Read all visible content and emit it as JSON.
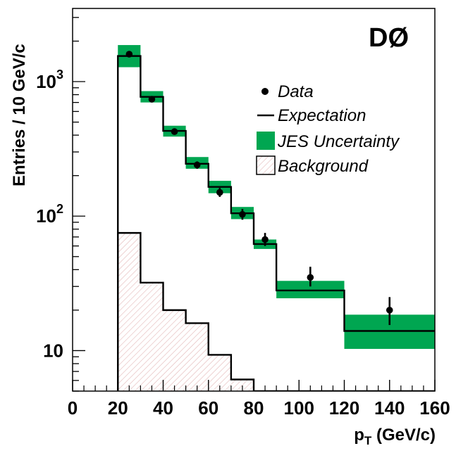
{
  "chart_data": {
    "type": "histogram",
    "experiment_label": "DØ",
    "xlabel": "p",
    "xlabel_subscript": "T",
    "xlabel_unit": " (GeV/c)",
    "ylabel": "Entries / 10 GeV/c",
    "xlim": [
      0,
      160
    ],
    "ylim": [
      5,
      3500
    ],
    "yscale": "log",
    "x_ticks": [
      {
        "value": 0,
        "label": "0"
      },
      {
        "value": 20,
        "label": "20"
      },
      {
        "value": 40,
        "label": "40"
      },
      {
        "value": 60,
        "label": "60"
      },
      {
        "value": 80,
        "label": "80"
      },
      {
        "value": 100,
        "label": "100"
      },
      {
        "value": 120,
        "label": "120"
      },
      {
        "value": 140,
        "label": "140"
      },
      {
        "value": 160,
        "label": "160"
      }
    ],
    "y_ticks": [
      {
        "value": 1000,
        "base": "10",
        "exp": "3"
      },
      {
        "value": 100,
        "base": "10",
        "exp": "2"
      },
      {
        "value": 10,
        "base": "10",
        "exp": ""
      }
    ],
    "bin_edges": [
      20,
      30,
      40,
      50,
      60,
      70,
      80,
      90,
      120,
      160
    ],
    "expectation": [
      1550,
      770,
      430,
      245,
      165,
      105,
      62,
      28,
      14
    ],
    "jes_uncertainty": [
      {
        "low": 1280,
        "high": 1870
      },
      {
        "low": 700,
        "high": 850
      },
      {
        "low": 390,
        "high": 470
      },
      {
        "low": 225,
        "high": 275
      },
      {
        "low": 148,
        "high": 183
      },
      {
        "low": 95,
        "high": 117
      },
      {
        "low": 57,
        "high": 67
      },
      {
        "low": 24.5,
        "high": 33
      },
      {
        "low": 10.3,
        "high": 18.5
      }
    ],
    "background": {
      "bin_edges": [
        20,
        30,
        40,
        50,
        60,
        70,
        80,
        160
      ],
      "values": [
        75,
        32,
        20,
        16,
        9.3,
        6.1,
        5
      ]
    },
    "data": [
      {
        "x": 25,
        "y": 1600,
        "err_low": 1560,
        "err_high": 1640
      },
      {
        "x": 35,
        "y": 740,
        "err_low": 715,
        "err_high": 765
      },
      {
        "x": 45,
        "y": 425,
        "err_low": 405,
        "err_high": 445
      },
      {
        "x": 55,
        "y": 240,
        "err_low": 225,
        "err_high": 255
      },
      {
        "x": 65,
        "y": 150,
        "err_low": 139,
        "err_high": 162
      },
      {
        "x": 75,
        "y": 103,
        "err_low": 94,
        "err_high": 113
      },
      {
        "x": 85,
        "y": 67,
        "err_low": 60,
        "err_high": 75
      },
      {
        "x": 105,
        "y": 35,
        "err_low": 30,
        "err_high": 42
      },
      {
        "x": 140,
        "y": 20,
        "err_low": 15.5,
        "err_high": 25
      }
    ],
    "legend": {
      "position": "top-right",
      "entries": [
        {
          "label": "Data",
          "marker": "point"
        },
        {
          "label": "Expectation",
          "marker": "line"
        },
        {
          "label": "JES Uncertainty",
          "marker": "box"
        },
        {
          "label": "Background",
          "marker": "hatched-box"
        }
      ]
    },
    "colors": {
      "data": "#000000",
      "expectation": "#000000",
      "jes_fill": "#00a651",
      "background_hatch": "#e3b6b6",
      "frame": "#000000"
    }
  }
}
